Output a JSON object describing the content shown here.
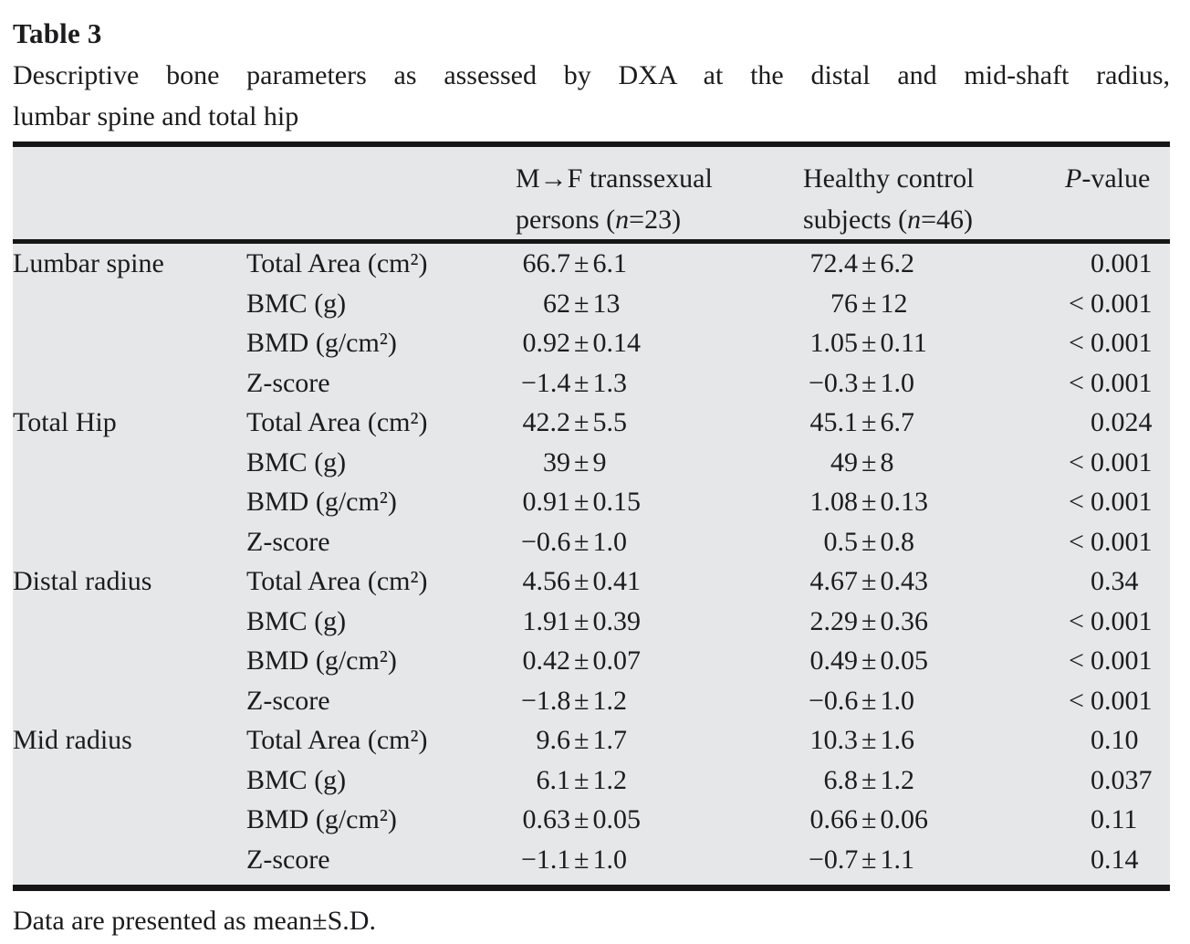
{
  "page": {
    "title": "Table 3",
    "caption_line1": "Descriptive bone parameters as assessed by DXA at the distal and mid-shaft radius,",
    "caption_line2": "lumbar spine and total hip",
    "footnote": "Data are presented as mean±S.D."
  },
  "colors": {
    "table_background": "#e6e7e8",
    "rule": "#161616",
    "text": "#1c1c1e"
  },
  "table": {
    "header": {
      "mf": {
        "line1": "M→F transsexual",
        "line2_pre": "persons (",
        "line2_it": "n",
        "line2_post": "=23)"
      },
      "hc": {
        "line1": "Healthy control",
        "line2_pre": "subjects (",
        "line2_it": "n",
        "line2_post": "=46)"
      },
      "p": {
        "it": "P",
        "rest": "-value"
      }
    },
    "groups": [
      {
        "region": "Lumbar spine",
        "rows": [
          {
            "param": "Total Area (cm²)",
            "mf": "66.7±6.1",
            "hc": "72.4±6.2",
            "p": "0.001"
          },
          {
            "param": "BMC (g)",
            "mf": "62±13",
            "hc": "76±12",
            "p": "<0.001"
          },
          {
            "param": "BMD (g/cm²)",
            "mf": "0.92±0.14",
            "hc": "1.05±0.11",
            "p": "<0.001"
          },
          {
            "param": "Z-score",
            "mf": "−1.4±1.3",
            "hc": "−0.3±1.0",
            "p": "<0.001"
          }
        ]
      },
      {
        "region": "Total Hip",
        "rows": [
          {
            "param": "Total Area (cm²)",
            "mf": "42.2±5.5",
            "hc": "45.1±6.7",
            "p": "0.024"
          },
          {
            "param": "BMC (g)",
            "mf": "39±9",
            "hc": "49±8",
            "p": "<0.001"
          },
          {
            "param": "BMD (g/cm²)",
            "mf": "0.91±0.15",
            "hc": "1.08±0.13",
            "p": "<0.001"
          },
          {
            "param": "Z-score",
            "mf": "−0.6±1.0",
            "hc": "0.5±0.8",
            "p": "<0.001"
          }
        ]
      },
      {
        "region": "Distal radius",
        "rows": [
          {
            "param": "Total Area (cm²)",
            "mf": "4.56±0.41",
            "hc": "4.67±0.43",
            "p": "0.34"
          },
          {
            "param": "BMC (g)",
            "mf": "1.91±0.39",
            "hc": "2.29±0.36",
            "p": "<0.001"
          },
          {
            "param": "BMD (g/cm²)",
            "mf": "0.42±0.07",
            "hc": "0.49±0.05",
            "p": "<0.001"
          },
          {
            "param": "Z-score",
            "mf": "−1.8±1.2",
            "hc": "−0.6±1.0",
            "p": "<0.001"
          }
        ]
      },
      {
        "region": "Mid radius",
        "rows": [
          {
            "param": "Total Area (cm²)",
            "mf": "9.6±1.7",
            "hc": "10.3±1.6",
            "p": "0.10"
          },
          {
            "param": "BMC (g)",
            "mf": "6.1±1.2",
            "hc": "6.8±1.2",
            "p": "0.037"
          },
          {
            "param": "BMD (g/cm²)",
            "mf": "0.63±0.05",
            "hc": "0.66±0.06",
            "p": "0.11"
          },
          {
            "param": "Z-score",
            "mf": "−1.1±1.0",
            "hc": "−0.7±1.1",
            "p": "0.14"
          }
        ]
      }
    ]
  }
}
